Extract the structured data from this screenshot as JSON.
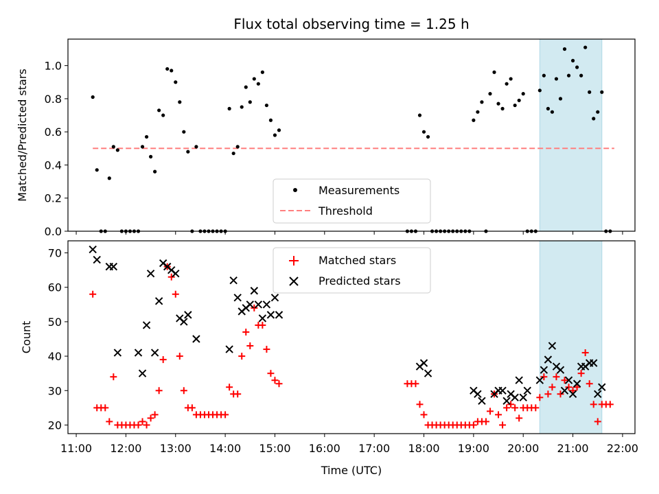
{
  "title": "Flux total observing time = 1.25 h",
  "xlabel": "Time (UTC)",
  "colors": {
    "highlight": "#add8e6",
    "measurement": "#000000",
    "threshold": "#ff7f7f",
    "matched": "#ff0000",
    "predicted": "#000000"
  },
  "chart_data": [
    {
      "type": "scatter",
      "ylabel": "Matched/Predicted stars",
      "ylim": [
        0,
        1.16
      ],
      "xlim": [
        "10:50",
        "22:15"
      ],
      "yticks": [
        0.0,
        0.2,
        0.4,
        0.6,
        0.8,
        1.0
      ],
      "ytick_labels": [
        "0.0",
        "0.2",
        "0.4",
        "0.6",
        "0.8",
        "1.0"
      ],
      "legend_position": "lower-center",
      "highlight_span": [
        "20:20",
        "21:35"
      ],
      "threshold": 0.5,
      "threshold_range": [
        "11:20",
        "21:50"
      ],
      "series": [
        {
          "name": "Measurements",
          "marker": "dot",
          "points": [
            [
              "11:20",
              0.81
            ],
            [
              "11:25",
              0.37
            ],
            [
              "11:30",
              0.0
            ],
            [
              "11:35",
              0.0
            ],
            [
              "11:40",
              0.32
            ],
            [
              "11:45",
              0.51
            ],
            [
              "11:50",
              0.49
            ],
            [
              "11:55",
              0.0
            ],
            [
              "12:00",
              0.0
            ],
            [
              "12:05",
              0.0
            ],
            [
              "12:10",
              0.0
            ],
            [
              "12:15",
              0.0
            ],
            [
              "12:20",
              0.51
            ],
            [
              "12:25",
              0.57
            ],
            [
              "12:30",
              0.45
            ],
            [
              "12:35",
              0.36
            ],
            [
              "12:40",
              0.73
            ],
            [
              "12:45",
              0.7
            ],
            [
              "12:50",
              0.98
            ],
            [
              "12:55",
              0.97
            ],
            [
              "13:00",
              0.9
            ],
            [
              "13:05",
              0.78
            ],
            [
              "13:10",
              0.6
            ],
            [
              "13:15",
              0.48
            ],
            [
              "13:20",
              0.0
            ],
            [
              "13:25",
              0.51
            ],
            [
              "13:30",
              0.0
            ],
            [
              "13:35",
              0.0
            ],
            [
              "13:40",
              0.0
            ],
            [
              "13:45",
              0.0
            ],
            [
              "13:50",
              0.0
            ],
            [
              "13:55",
              0.0
            ],
            [
              "14:00",
              0.0
            ],
            [
              "14:05",
              0.74
            ],
            [
              "14:10",
              0.47
            ],
            [
              "14:15",
              0.51
            ],
            [
              "14:20",
              0.75
            ],
            [
              "14:25",
              0.87
            ],
            [
              "14:30",
              0.78
            ],
            [
              "14:35",
              0.92
            ],
            [
              "14:40",
              0.89
            ],
            [
              "14:45",
              0.96
            ],
            [
              "14:50",
              0.76
            ],
            [
              "14:55",
              0.67
            ],
            [
              "15:00",
              0.58
            ],
            [
              "15:05",
              0.61
            ],
            [
              "17:40",
              0.0
            ],
            [
              "17:45",
              0.0
            ],
            [
              "17:50",
              0.0
            ],
            [
              "17:55",
              0.7
            ],
            [
              "18:00",
              0.6
            ],
            [
              "18:05",
              0.57
            ],
            [
              "18:10",
              0.0
            ],
            [
              "18:15",
              0.0
            ],
            [
              "18:20",
              0.0
            ],
            [
              "18:25",
              0.0
            ],
            [
              "18:30",
              0.0
            ],
            [
              "18:35",
              0.0
            ],
            [
              "18:40",
              0.0
            ],
            [
              "18:45",
              0.0
            ],
            [
              "18:50",
              0.0
            ],
            [
              "18:55",
              0.0
            ],
            [
              "19:00",
              0.67
            ],
            [
              "19:05",
              0.72
            ],
            [
              "19:10",
              0.78
            ],
            [
              "19:15",
              0.0
            ],
            [
              "19:20",
              0.83
            ],
            [
              "19:25",
              0.96
            ],
            [
              "19:30",
              0.77
            ],
            [
              "19:35",
              0.74
            ],
            [
              "19:40",
              0.89
            ],
            [
              "19:45",
              0.92
            ],
            [
              "19:50",
              0.76
            ],
            [
              "19:55",
              0.79
            ],
            [
              "20:00",
              0.83
            ],
            [
              "20:05",
              0.0
            ],
            [
              "20:10",
              0.0
            ],
            [
              "20:15",
              0.0
            ],
            [
              "20:20",
              0.85
            ],
            [
              "20:25",
              0.94
            ],
            [
              "20:30",
              0.74
            ],
            [
              "20:35",
              0.72
            ],
            [
              "20:40",
              0.92
            ],
            [
              "20:45",
              0.8
            ],
            [
              "20:50",
              1.1
            ],
            [
              "20:55",
              0.94
            ],
            [
              "21:00",
              1.03
            ],
            [
              "21:05",
              0.99
            ],
            [
              "21:10",
              0.94
            ],
            [
              "21:15",
              1.11
            ],
            [
              "21:20",
              0.84
            ],
            [
              "21:25",
              0.68
            ],
            [
              "21:30",
              0.72
            ],
            [
              "21:35",
              0.84
            ],
            [
              "21:40",
              0.0
            ],
            [
              "21:45",
              0.0
            ]
          ]
        },
        {
          "name": "Threshold",
          "style": "dashed"
        }
      ]
    },
    {
      "type": "scatter",
      "ylabel": "Count",
      "ylim": [
        17.5,
        73.5
      ],
      "xlim": [
        "10:50",
        "22:15"
      ],
      "yticks": [
        20,
        30,
        40,
        50,
        60,
        70
      ],
      "ytick_labels": [
        "20",
        "30",
        "40",
        "50",
        "60",
        "70"
      ],
      "xticks": [
        "11:00",
        "12:00",
        "13:00",
        "14:00",
        "15:00",
        "16:00",
        "17:00",
        "18:00",
        "19:00",
        "20:00",
        "21:00",
        "22:00"
      ],
      "legend_position": "upper-center",
      "highlight_span": [
        "20:20",
        "21:35"
      ],
      "series": [
        {
          "name": "Matched stars",
          "marker": "plus",
          "points": [
            [
              "11:20",
              58
            ],
            [
              "11:25",
              25
            ],
            [
              "11:30",
              25
            ],
            [
              "11:35",
              25
            ],
            [
              "11:40",
              21
            ],
            [
              "11:45",
              34
            ],
            [
              "11:50",
              20
            ],
            [
              "11:55",
              20
            ],
            [
              "12:00",
              20
            ],
            [
              "12:05",
              20
            ],
            [
              "12:10",
              20
            ],
            [
              "12:15",
              20
            ],
            [
              "12:20",
              21
            ],
            [
              "12:25",
              20
            ],
            [
              "12:30",
              22
            ],
            [
              "12:35",
              23
            ],
            [
              "12:40",
              30
            ],
            [
              "12:45",
              39
            ],
            [
              "12:50",
              66
            ],
            [
              "12:55",
              63
            ],
            [
              "13:00",
              58
            ],
            [
              "13:05",
              40
            ],
            [
              "13:10",
              30
            ],
            [
              "13:15",
              25
            ],
            [
              "13:20",
              25
            ],
            [
              "13:25",
              23
            ],
            [
              "13:30",
              23
            ],
            [
              "13:35",
              23
            ],
            [
              "13:40",
              23
            ],
            [
              "13:45",
              23
            ],
            [
              "13:50",
              23
            ],
            [
              "13:55",
              23
            ],
            [
              "14:00",
              23
            ],
            [
              "14:05",
              31
            ],
            [
              "14:10",
              29
            ],
            [
              "14:15",
              29
            ],
            [
              "14:20",
              40
            ],
            [
              "14:25",
              47
            ],
            [
              "14:30",
              43
            ],
            [
              "14:35",
              54
            ],
            [
              "14:40",
              49
            ],
            [
              "14:45",
              49
            ],
            [
              "14:50",
              42
            ],
            [
              "14:55",
              35
            ],
            [
              "15:00",
              33
            ],
            [
              "15:05",
              32
            ],
            [
              "17:40",
              32
            ],
            [
              "17:45",
              32
            ],
            [
              "17:50",
              32
            ],
            [
              "17:55",
              26
            ],
            [
              "18:00",
              23
            ],
            [
              "18:05",
              20
            ],
            [
              "18:10",
              20
            ],
            [
              "18:15",
              20
            ],
            [
              "18:20",
              20
            ],
            [
              "18:25",
              20
            ],
            [
              "18:30",
              20
            ],
            [
              "18:35",
              20
            ],
            [
              "18:40",
              20
            ],
            [
              "18:45",
              20
            ],
            [
              "18:50",
              20
            ],
            [
              "18:55",
              20
            ],
            [
              "19:00",
              20
            ],
            [
              "19:05",
              21
            ],
            [
              "19:10",
              21
            ],
            [
              "19:15",
              21
            ],
            [
              "19:20",
              24
            ],
            [
              "19:25",
              29
            ],
            [
              "19:30",
              23
            ],
            [
              "19:35",
              20
            ],
            [
              "19:40",
              25
            ],
            [
              "19:45",
              26
            ],
            [
              "19:50",
              25
            ],
            [
              "19:55",
              22
            ],
            [
              "20:00",
              25
            ],
            [
              "20:05",
              25
            ],
            [
              "20:10",
              25
            ],
            [
              "20:15",
              25
            ],
            [
              "20:20",
              28
            ],
            [
              "20:25",
              34
            ],
            [
              "20:30",
              29
            ],
            [
              "20:35",
              31
            ],
            [
              "20:40",
              34
            ],
            [
              "20:45",
              29
            ],
            [
              "20:50",
              33
            ],
            [
              "20:55",
              31
            ],
            [
              "21:00",
              30
            ],
            [
              "21:05",
              31
            ],
            [
              "21:10",
              35
            ],
            [
              "21:15",
              41
            ],
            [
              "21:20",
              32
            ],
            [
              "21:25",
              26
            ],
            [
              "21:30",
              21
            ],
            [
              "21:35",
              26
            ],
            [
              "21:40",
              26
            ],
            [
              "21:45",
              26
            ]
          ]
        },
        {
          "name": "Predicted stars",
          "marker": "x",
          "points": [
            [
              "11:20",
              71
            ],
            [
              "11:25",
              68
            ],
            [
              "11:40",
              66
            ],
            [
              "11:45",
              66
            ],
            [
              "11:50",
              41
            ],
            [
              "12:15",
              41
            ],
            [
              "12:20",
              35
            ],
            [
              "12:25",
              49
            ],
            [
              "12:30",
              64
            ],
            [
              "12:35",
              41
            ],
            [
              "12:40",
              56
            ],
            [
              "12:45",
              67
            ],
            [
              "12:50",
              66
            ],
            [
              "12:55",
              65
            ],
            [
              "13:00",
              64
            ],
            [
              "13:05",
              51
            ],
            [
              "13:10",
              50
            ],
            [
              "13:15",
              52
            ],
            [
              "13:25",
              45
            ],
            [
              "14:05",
              42
            ],
            [
              "14:10",
              62
            ],
            [
              "14:15",
              57
            ],
            [
              "14:20",
              53
            ],
            [
              "14:25",
              54
            ],
            [
              "14:30",
              55
            ],
            [
              "14:35",
              59
            ],
            [
              "14:40",
              55
            ],
            [
              "14:45",
              51
            ],
            [
              "14:50",
              55
            ],
            [
              "14:55",
              52
            ],
            [
              "15:00",
              57
            ],
            [
              "15:05",
              52
            ],
            [
              "17:55",
              37
            ],
            [
              "18:00",
              38
            ],
            [
              "18:05",
              35
            ],
            [
              "19:00",
              30
            ],
            [
              "19:05",
              29
            ],
            [
              "19:10",
              27
            ],
            [
              "19:25",
              29
            ],
            [
              "19:30",
              30
            ],
            [
              "19:35",
              30
            ],
            [
              "19:40",
              27
            ],
            [
              "19:45",
              29
            ],
            [
              "19:50",
              28
            ],
            [
              "19:55",
              33
            ],
            [
              "20:00",
              28
            ],
            [
              "20:05",
              30
            ],
            [
              "20:20",
              33
            ],
            [
              "20:25",
              36
            ],
            [
              "20:30",
              39
            ],
            [
              "20:35",
              43
            ],
            [
              "20:40",
              37
            ],
            [
              "20:45",
              36
            ],
            [
              "20:50",
              30
            ],
            [
              "20:55",
              33
            ],
            [
              "21:00",
              29
            ],
            [
              "21:05",
              32
            ],
            [
              "21:10",
              37
            ],
            [
              "21:15",
              37
            ],
            [
              "21:20",
              38
            ],
            [
              "21:25",
              38
            ],
            [
              "21:30",
              29
            ],
            [
              "21:35",
              31
            ]
          ]
        }
      ]
    }
  ]
}
